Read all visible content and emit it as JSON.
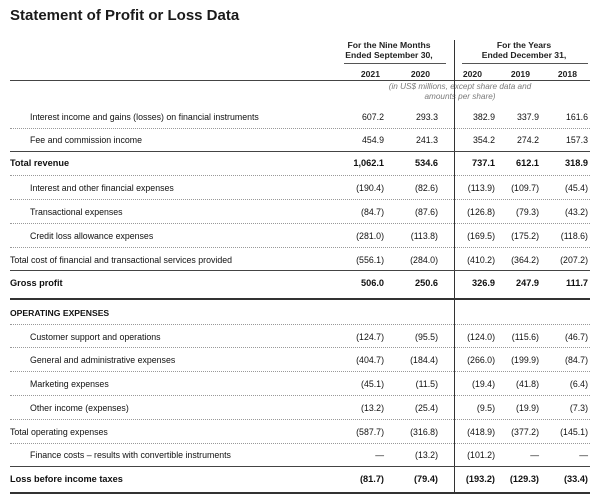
{
  "title": "Statement of Profit or Loss Data",
  "header": {
    "nine_months": [
      "For the Nine Months",
      "Ended September 30,"
    ],
    "years": [
      "For the Years",
      "Ended December 31,"
    ],
    "year_labels": [
      "2021",
      "2020",
      "2020",
      "2019",
      "2018"
    ],
    "note": [
      "(in US$ millions, except share data and",
      "amounts per share)"
    ]
  },
  "rows": [
    {
      "label": "Interest income and gains (losses) on financial instruments",
      "values": [
        "607.2",
        "293.3",
        "382.9",
        "337.9",
        "161.6"
      ]
    },
    {
      "label": "Fee and commission income",
      "values": [
        "454.9",
        "241.3",
        "354.2",
        "274.2",
        "157.3"
      ]
    },
    {
      "label": "Total revenue",
      "values": [
        "1,062.1",
        "534.6",
        "737.1",
        "612.1",
        "318.9"
      ]
    },
    {
      "label": "Interest and other financial expenses",
      "values": [
        "(190.4)",
        "(82.6)",
        "(113.9)",
        "(109.7)",
        "(45.4)"
      ]
    },
    {
      "label": "Transactional expenses",
      "values": [
        "(84.7)",
        "(87.6)",
        "(126.8)",
        "(79.3)",
        "(43.2)"
      ]
    },
    {
      "label": "Credit loss allowance expenses",
      "values": [
        "(281.0)",
        "(113.8)",
        "(169.5)",
        "(175.2)",
        "(118.6)"
      ]
    },
    {
      "label": "Total cost of financial and transactional services provided",
      "values": [
        "(556.1)",
        "(284.0)",
        "(410.2)",
        "(364.2)",
        "(207.2)"
      ]
    },
    {
      "label": "Gross profit",
      "values": [
        "506.0",
        "250.6",
        "326.9",
        "247.9",
        "111.7"
      ]
    },
    {
      "label": "OPERATING EXPENSES",
      "values": [
        "",
        "",
        "",
        "",
        ""
      ]
    },
    {
      "label": "Customer support and operations",
      "values": [
        "(124.7)",
        "(95.5)",
        "(124.0)",
        "(115.6)",
        "(46.7)"
      ]
    },
    {
      "label": "General and administrative expenses",
      "values": [
        "(404.7)",
        "(184.4)",
        "(266.0)",
        "(199.9)",
        "(84.7)"
      ]
    },
    {
      "label": "Marketing expenses",
      "values": [
        "(45.1)",
        "(11.5)",
        "(19.4)",
        "(41.8)",
        "(6.4)"
      ]
    },
    {
      "label": "Other income (expenses)",
      "values": [
        "(13.2)",
        "(25.4)",
        "(9.5)",
        "(19.9)",
        "(7.3)"
      ]
    },
    {
      "label": "Total operating expenses",
      "values": [
        "(587.7)",
        "(316.8)",
        "(418.9)",
        "(377.2)",
        "(145.1)"
      ]
    },
    {
      "label": "Finance costs – results with convertible instruments",
      "values": [
        "—",
        "(13.2)",
        "(101.2)",
        "—",
        "—"
      ]
    },
    {
      "label": "Loss before income taxes",
      "values": [
        "(81.7)",
        "(79.4)",
        "(193.2)",
        "(129.3)",
        "(33.4)"
      ]
    }
  ]
}
